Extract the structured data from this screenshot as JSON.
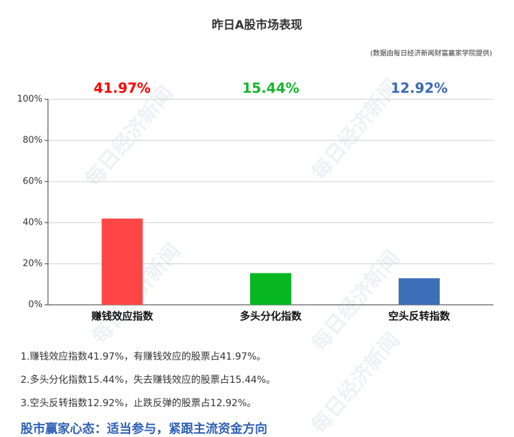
{
  "chart_data": {
    "type": "bar",
    "title": "昨日A股市场表现",
    "subtitle": "(数据由每日经济新闻财富赢家学院提供)",
    "categories": [
      "赚钱效应指数",
      "多头分化指数",
      "空头反转指数"
    ],
    "values": [
      41.97,
      15.44,
      12.92
    ],
    "value_labels": [
      "41.97%",
      "15.44%",
      "12.92%"
    ],
    "colors": [
      "#ff4646",
      "#07b823",
      "#3d6eb8"
    ],
    "label_colors": [
      "#ff0000",
      "#16b62e",
      "#3c6ab0"
    ],
    "ylim": [
      0,
      100
    ],
    "yticks": [
      {
        "value": 0,
        "label": "0%"
      },
      {
        "value": 20,
        "label": "20%"
      },
      {
        "value": 40,
        "label": "40%"
      },
      {
        "value": 60,
        "label": "60%"
      },
      {
        "value": 80,
        "label": "80%"
      },
      {
        "value": 100,
        "label": "100%"
      }
    ],
    "grid": true
  },
  "notes": [
    "1.赚钱效应指数41.97%，有赚钱效应的股票占41.97%。",
    "2.多头分化指数15.44%，失去赚钱效应的股票占15.44%。",
    "3.空头反转指数12.92%，止跌反弹的股票占12.92%。"
  ],
  "headline": "股市赢家心态：适当参与，紧跟主流资金方向",
  "watermark": "每日经济新闻"
}
